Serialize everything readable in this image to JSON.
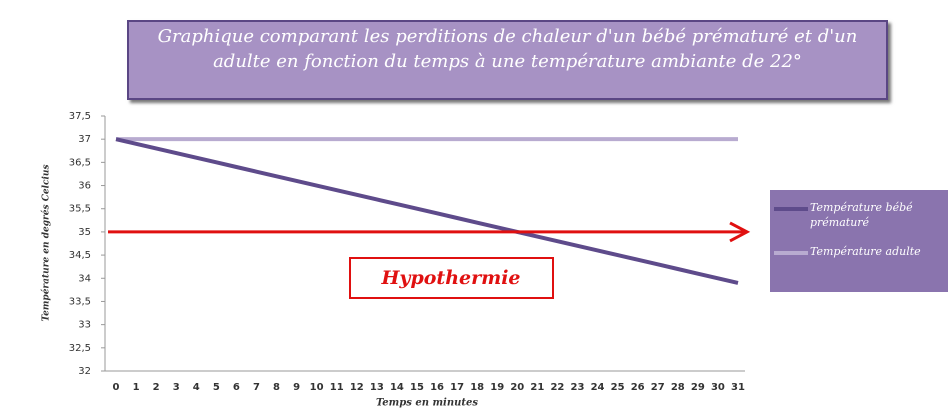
{
  "chart_data": {
    "type": "line",
    "title": "Graphique comparant les perditions de chaleur d'un bébé prématuré et d'un adulte en fonction du temps à une température ambiante de 22°",
    "x_label": "Temps en minutes",
    "y_label": "Température en degrés Celcius",
    "categories": [
      0,
      1,
      2,
      3,
      4,
      5,
      6,
      7,
      8,
      9,
      10,
      11,
      12,
      13,
      14,
      15,
      16,
      17,
      18,
      19,
      20,
      21,
      22,
      23,
      24,
      25,
      26,
      27,
      28,
      29,
      30,
      31
    ],
    "series": [
      {
        "name": "Température bébé prématuré",
        "color": "#5e4b8b",
        "values": [
          37,
          36.9,
          36.8,
          36.7,
          36.6,
          36.5,
          36.4,
          36.3,
          36.2,
          36.1,
          36,
          35.9,
          35.8,
          35.7,
          35.6,
          35.5,
          35.4,
          35.3,
          35.2,
          35.1,
          35,
          34.9,
          34.8,
          34.7,
          34.6,
          34.5,
          34.4,
          34.3,
          34.2,
          34.1,
          34,
          33.9
        ]
      },
      {
        "name": "Température adulte",
        "color": "#b8abd0",
        "values": [
          37,
          37,
          37,
          37,
          37,
          37,
          37,
          37,
          37,
          37,
          37,
          37,
          37,
          37,
          37,
          37,
          37,
          37,
          37,
          37,
          37,
          37,
          37,
          37,
          37,
          37,
          37,
          37,
          37,
          37,
          37,
          37
        ]
      }
    ],
    "ylim": [
      32,
      37.5
    ],
    "yticks": [
      32,
      {
        "value": 32.5,
        "label": "32,5"
      },
      33,
      {
        "value": 33.5,
        "label": "33,5"
      },
      34,
      {
        "value": 34.5,
        "label": "34,5"
      },
      35,
      {
        "value": 35.5,
        "label": "35,5"
      },
      36,
      {
        "value": 36.5,
        "label": "36,5"
      },
      37,
      {
        "value": 37.5,
        "label": "37,5"
      }
    ],
    "threshold": 35,
    "threshold_color": "#e01010",
    "annotation": "Hypothermie",
    "legend": "right"
  }
}
